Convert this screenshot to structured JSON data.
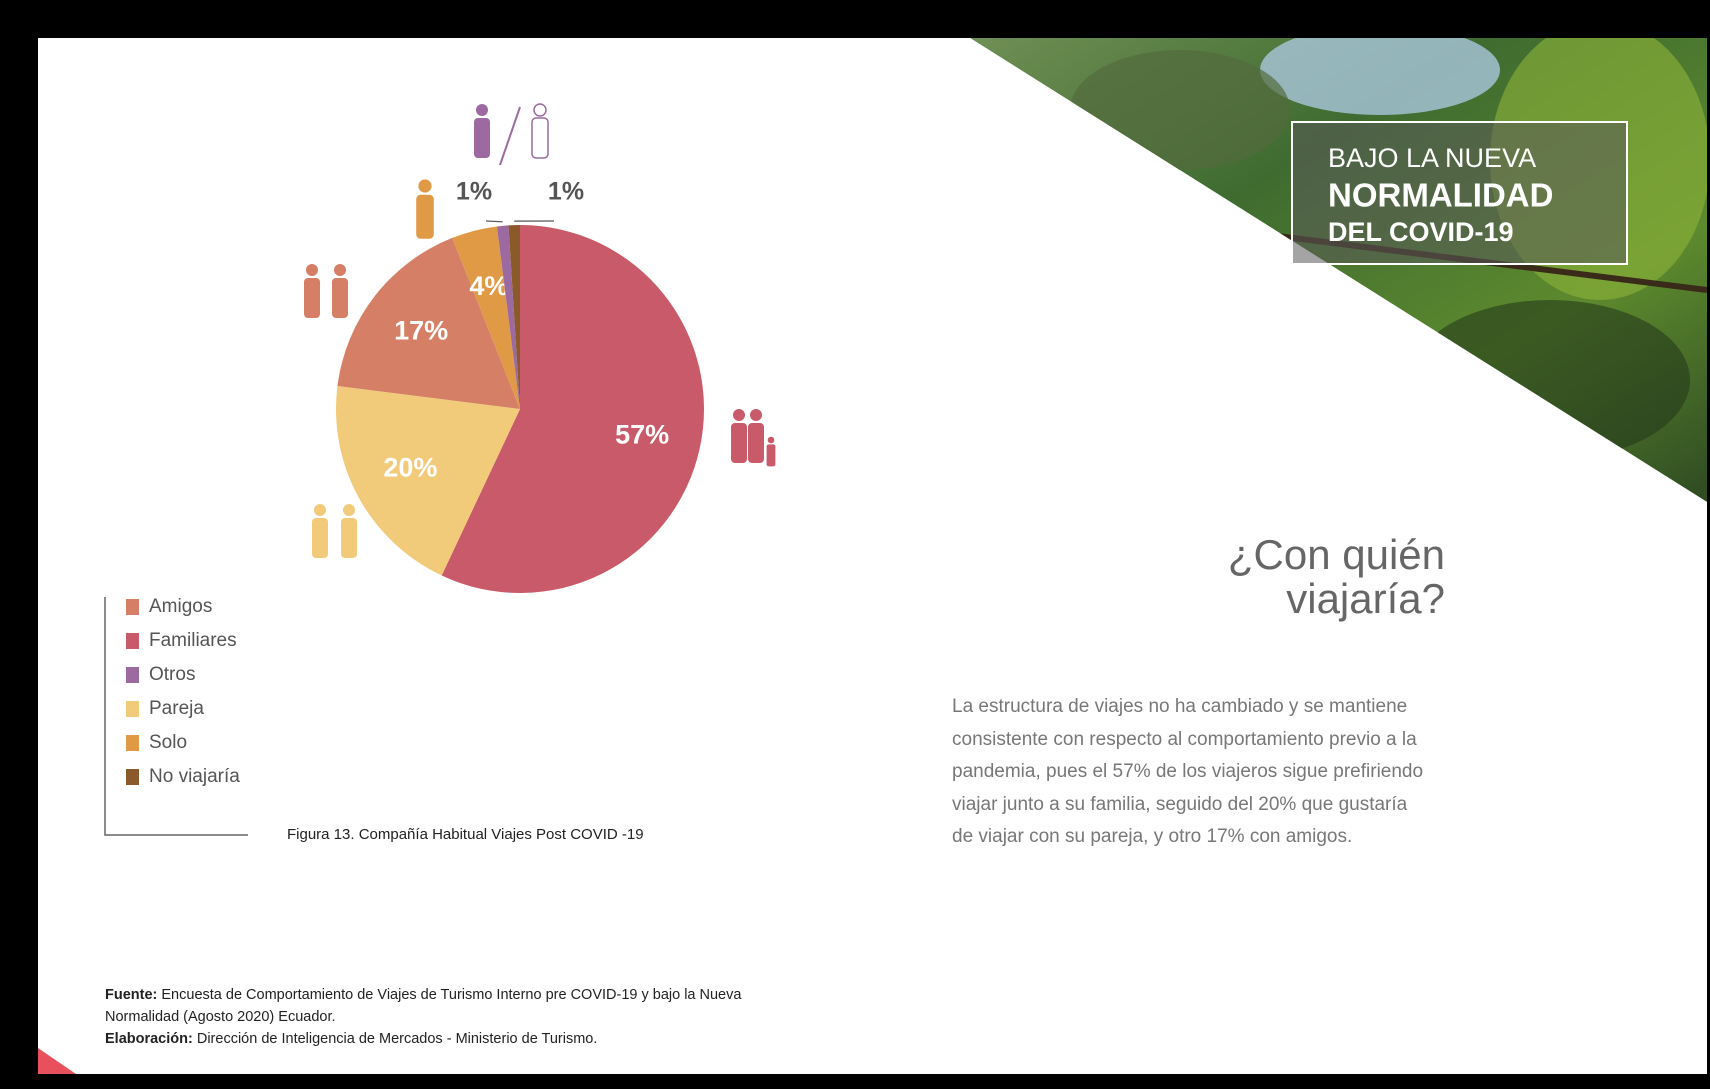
{
  "banner": {
    "line1": "BAJO LA NUEVA",
    "line2": "NORMALIDAD",
    "line3": "DEL COVID-19"
  },
  "heading": [
    "¿Con quién",
    "viajaría?"
  ],
  "paragraph": [
    "La estructura de viajes no ha cambiado y se mantiene",
    "consistente con respecto al comportamiento previo a la",
    "pandemia, pues el 57% de los viajeros sigue prefiriendo",
    "viajar junto a su familia, seguido del 20% que gustaría",
    "de viajar con su pareja, y otro 17% con amigos."
  ],
  "chart_data": {
    "type": "pie",
    "categories": [
      "Familiares",
      "Pareja",
      "Amigos",
      "Solo",
      "Otros",
      "No viajaría"
    ],
    "values": [
      57,
      20,
      17,
      4,
      1,
      1
    ],
    "value_labels": [
      "57%",
      "20%",
      "17%",
      "4%",
      "1%",
      "1%"
    ],
    "colors": [
      "#c95a69",
      "#f1cb7a",
      "#d47f66",
      "#e09a45",
      "#9c6aa0",
      "#8a5a2a"
    ],
    "legend": [
      {
        "label": "Amigos",
        "color": "#d47f66"
      },
      {
        "label": "Familiares",
        "color": "#c95a69"
      },
      {
        "label": "Otros",
        "color": "#9c6aa0"
      },
      {
        "label": "Pareja",
        "color": "#f1cb7a"
      },
      {
        "label": "Solo",
        "color": "#e09a45"
      },
      {
        "label": "No viajaría",
        "color": "#8a5a2a"
      }
    ],
    "caption": "Figura 13. Compañía Habitual Viajes Post COVID -19"
  },
  "source": {
    "label1": "Fuente:",
    "text1": "Encuesta de Comportamiento de Viajes de Turismo Interno pre COVID-19 y bajo la Nueva",
    "text1b": "Normalidad (Agosto 2020) Ecuador.",
    "label2": "Elaboración:",
    "text2": "Dirección de Inteligencia de Mercados - Ministerio de Turismo."
  }
}
